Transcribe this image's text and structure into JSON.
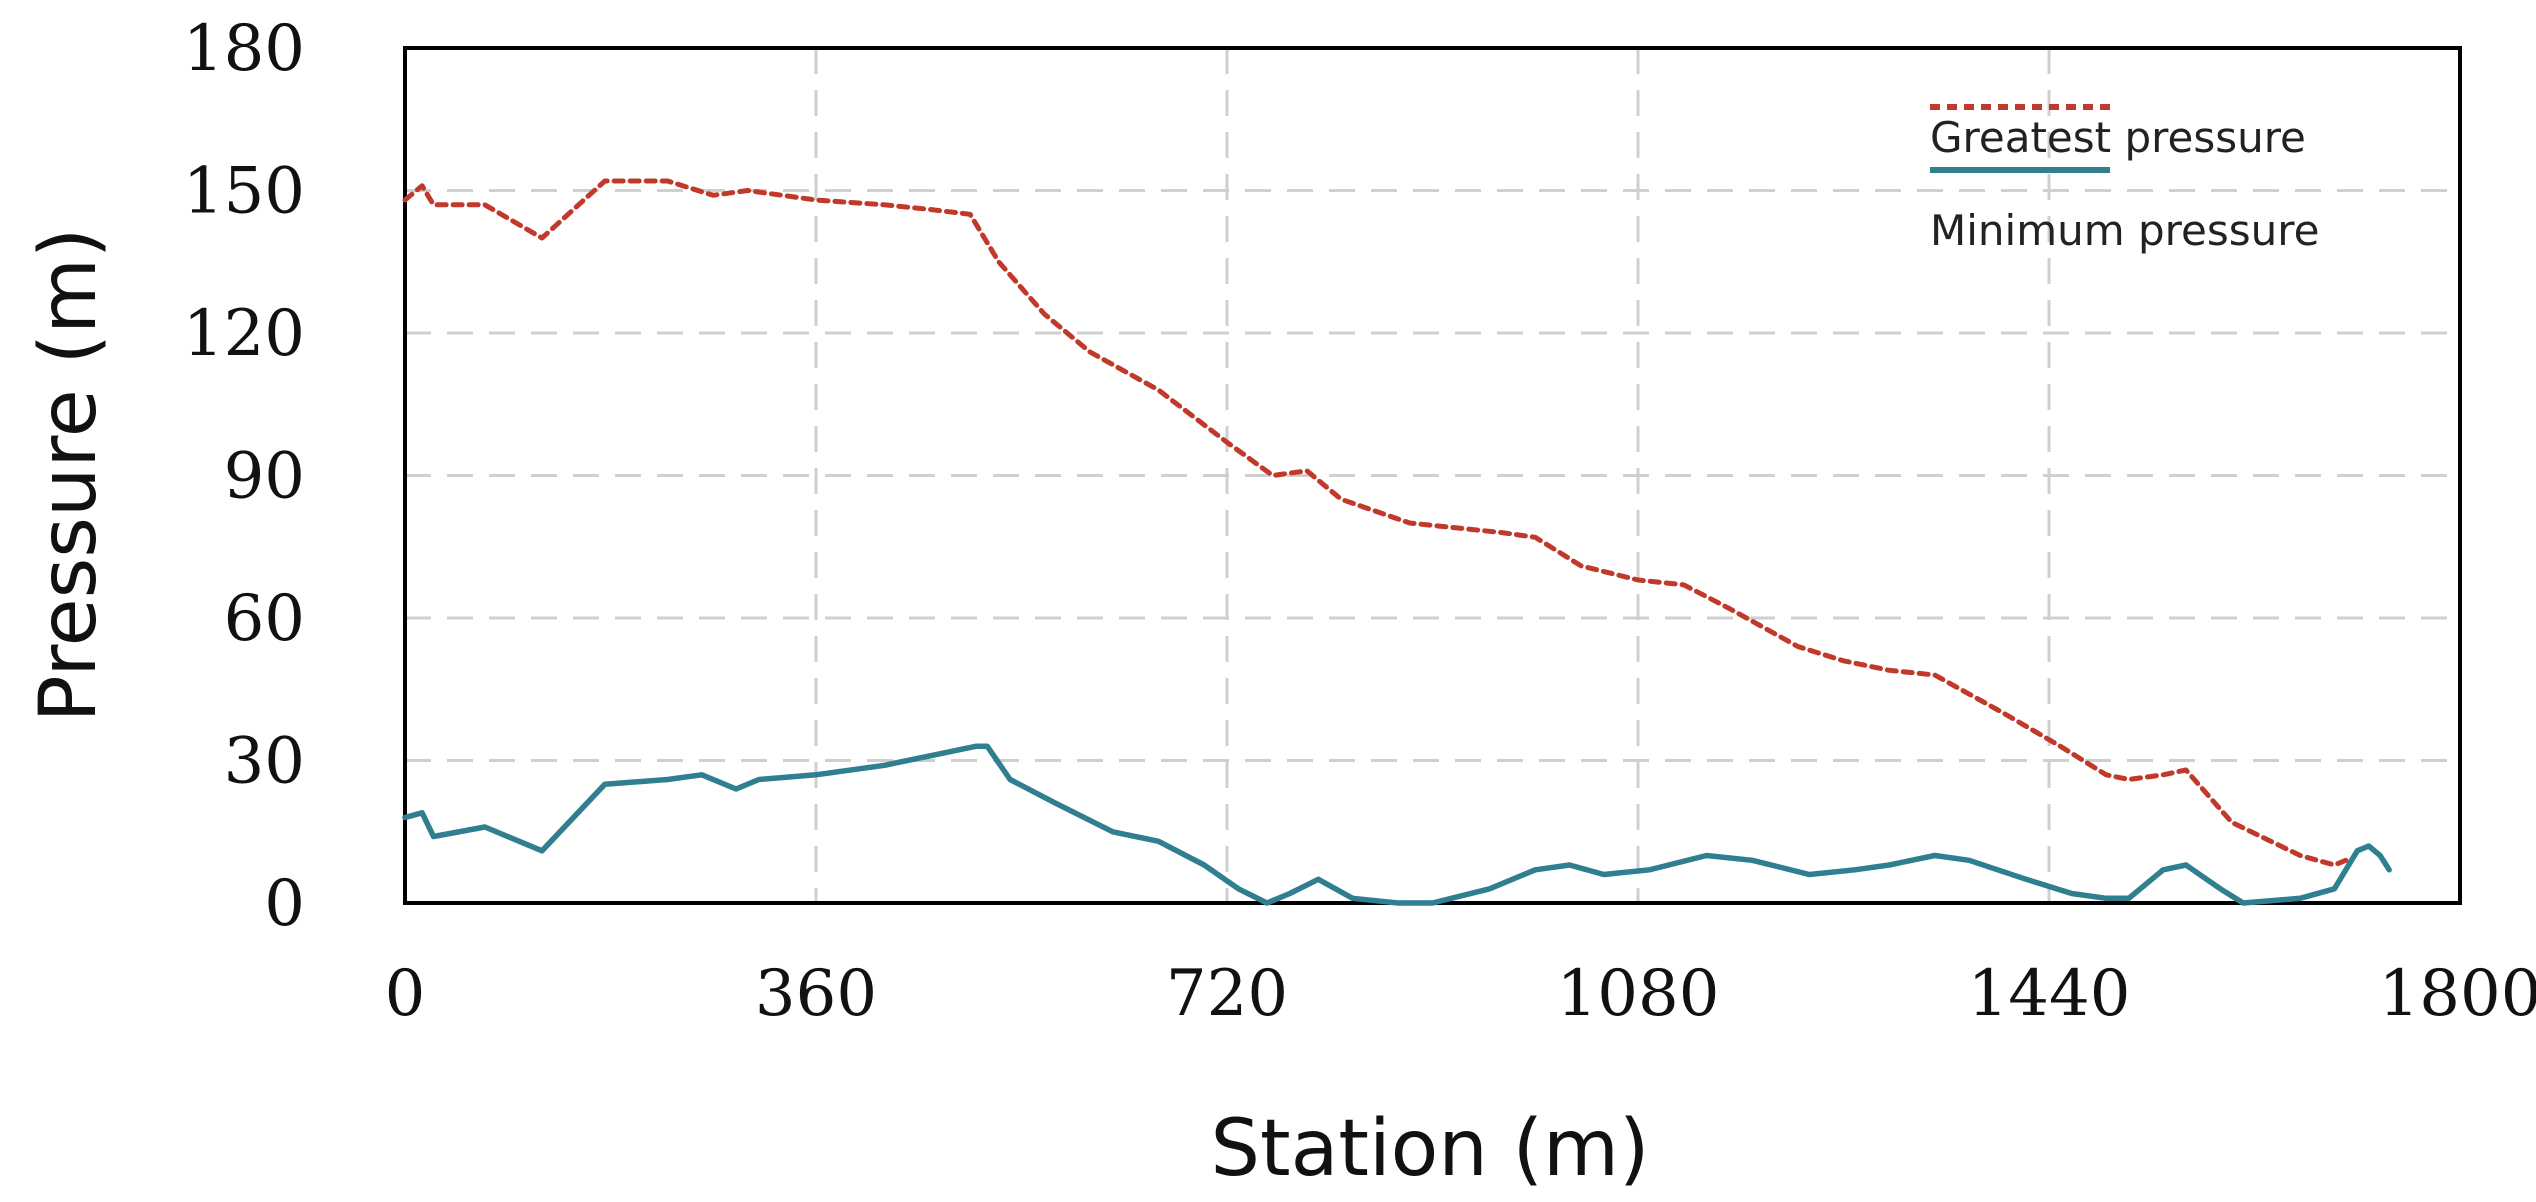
{
  "chart_data": {
    "type": "line",
    "title": "",
    "xlabel": "Station  (m)",
    "ylabel": "Pressure    (m)",
    "xlim": [
      0,
      1800
    ],
    "ylim": [
      0,
      180
    ],
    "xticks": [
      0,
      360,
      720,
      1080,
      1440,
      1800
    ],
    "yticks": [
      0,
      30,
      60,
      90,
      120,
      150,
      180
    ],
    "grid": true,
    "legend_position": "top-right",
    "series": [
      {
        "name": "Greatest pressure",
        "color": "#c0392b",
        "style": "dashed",
        "points": [
          [
            0,
            148
          ],
          [
            15,
            151
          ],
          [
            25,
            147
          ],
          [
            70,
            147
          ],
          [
            120,
            140
          ],
          [
            175,
            152
          ],
          [
            230,
            152
          ],
          [
            270,
            149
          ],
          [
            300,
            150
          ],
          [
            360,
            148
          ],
          [
            420,
            147
          ],
          [
            460,
            146
          ],
          [
            495,
            145
          ],
          [
            520,
            135
          ],
          [
            560,
            124
          ],
          [
            600,
            116
          ],
          [
            660,
            108
          ],
          [
            720,
            97
          ],
          [
            760,
            90
          ],
          [
            790,
            91
          ],
          [
            820,
            85
          ],
          [
            880,
            80
          ],
          [
            960,
            78
          ],
          [
            990,
            77
          ],
          [
            1030,
            71
          ],
          [
            1080,
            68
          ],
          [
            1120,
            67
          ],
          [
            1160,
            62
          ],
          [
            1220,
            54
          ],
          [
            1260,
            51
          ],
          [
            1300,
            49
          ],
          [
            1340,
            48
          ],
          [
            1400,
            40
          ],
          [
            1450,
            33
          ],
          [
            1490,
            27
          ],
          [
            1510,
            26
          ],
          [
            1540,
            27
          ],
          [
            1560,
            28
          ],
          [
            1600,
            17
          ],
          [
            1660,
            10
          ],
          [
            1690,
            8
          ],
          [
            1700,
            9
          ]
        ]
      },
      {
        "name": "Minimum pressure",
        "color": "#2f7f91",
        "style": "solid",
        "points": [
          [
            0,
            18
          ],
          [
            15,
            19
          ],
          [
            25,
            14
          ],
          [
            70,
            16
          ],
          [
            120,
            11
          ],
          [
            175,
            25
          ],
          [
            230,
            26
          ],
          [
            260,
            27
          ],
          [
            290,
            24
          ],
          [
            310,
            26
          ],
          [
            360,
            27
          ],
          [
            420,
            29
          ],
          [
            460,
            31
          ],
          [
            500,
            33
          ],
          [
            510,
            33
          ],
          [
            530,
            26
          ],
          [
            570,
            21
          ],
          [
            620,
            15
          ],
          [
            660,
            13
          ],
          [
            700,
            8
          ],
          [
            730,
            3
          ],
          [
            755,
            0
          ],
          [
            775,
            2
          ],
          [
            800,
            5
          ],
          [
            830,
            1
          ],
          [
            870,
            0
          ],
          [
            900,
            0
          ],
          [
            950,
            3
          ],
          [
            990,
            7
          ],
          [
            1020,
            8
          ],
          [
            1050,
            6
          ],
          [
            1090,
            7
          ],
          [
            1140,
            10
          ],
          [
            1180,
            9
          ],
          [
            1230,
            6
          ],
          [
            1270,
            7
          ],
          [
            1300,
            8
          ],
          [
            1340,
            10
          ],
          [
            1370,
            9
          ],
          [
            1420,
            5
          ],
          [
            1460,
            2
          ],
          [
            1490,
            1
          ],
          [
            1510,
            1
          ],
          [
            1540,
            7
          ],
          [
            1560,
            8
          ],
          [
            1590,
            3
          ],
          [
            1610,
            0
          ],
          [
            1660,
            1
          ],
          [
            1690,
            3
          ],
          [
            1710,
            11
          ],
          [
            1720,
            12
          ],
          [
            1730,
            10
          ],
          [
            1738,
            7
          ]
        ]
      }
    ]
  }
}
